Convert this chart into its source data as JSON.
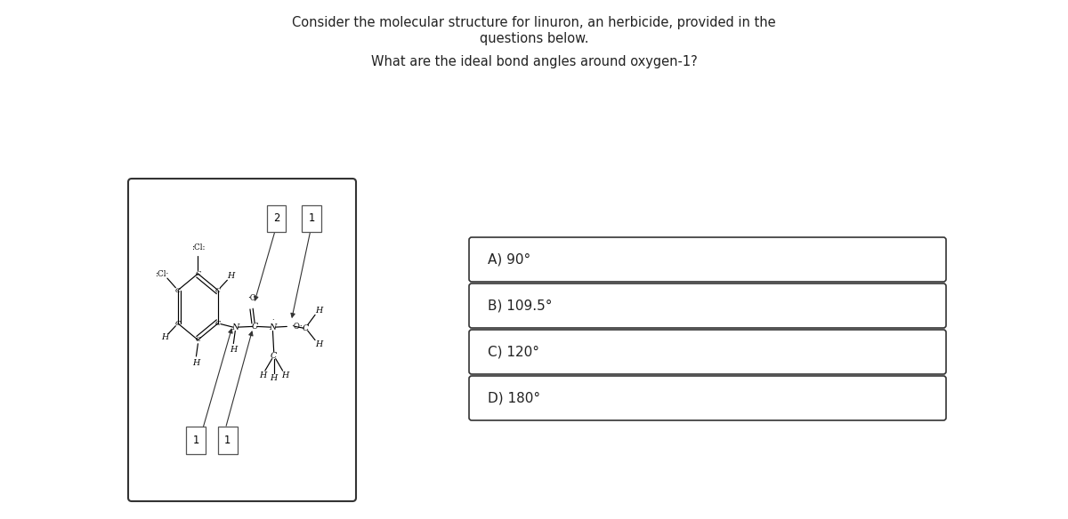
{
  "title_line1": "Consider the molecular structure for linuron, an herbicide, provided in the",
  "title_line2": "questions below.",
  "question": "What are the ideal bond angles around oxygen-1?",
  "options": [
    "A) 90°",
    "B) 109.5°",
    "C) 120°",
    "D) 180°"
  ],
  "bg_color": "#ffffff",
  "text_color": "#222222",
  "box_color": "#333333",
  "title_fontsize": 10.5,
  "question_fontsize": 10.5,
  "option_fontsize": 11
}
